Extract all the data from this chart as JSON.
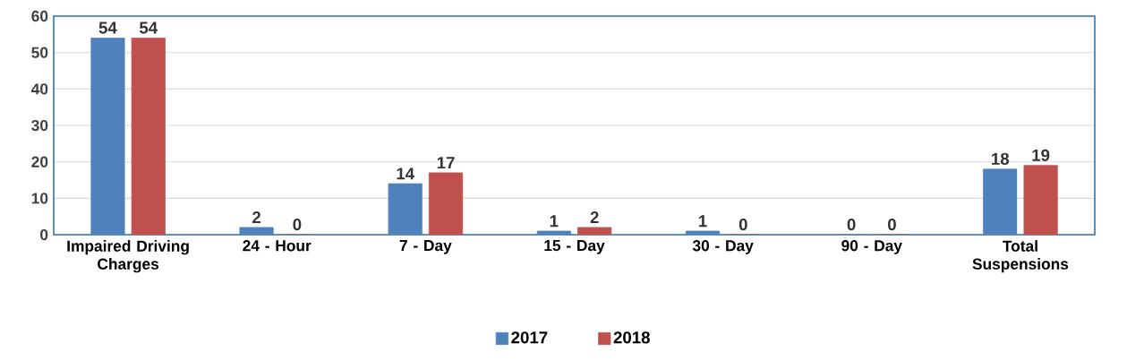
{
  "chart_data": {
    "type": "bar",
    "categories": [
      "Impaired Driving Charges",
      "24 - Hour",
      "7 - Day",
      "15 - Day",
      "30 - Day",
      "90 - Day",
      "Total Suspensions"
    ],
    "series": [
      {
        "name": "2017",
        "color": "#4f81bd",
        "values": [
          54,
          2,
          14,
          1,
          1,
          0,
          18
        ]
      },
      {
        "name": "2018",
        "color": "#c0504d",
        "values": [
          54,
          0,
          17,
          2,
          0,
          0,
          19
        ]
      }
    ],
    "ylim": [
      0,
      60
    ],
    "yticks": [
      0,
      10,
      20,
      30,
      40,
      50,
      60
    ],
    "grid": "y",
    "legend": "bottom",
    "data_labels": true
  }
}
